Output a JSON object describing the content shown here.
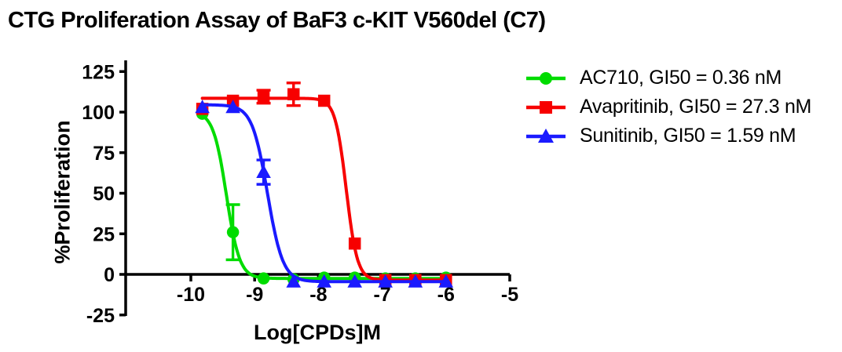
{
  "page": {
    "background": "#ffffff"
  },
  "chart_data": {
    "type": "line",
    "subtype": "dose-response-curves-with-error-bars",
    "title": "CTG Proliferation Assay of BaF3 c-KIT V560del (C7)",
    "xlabel": "Log[CPDs]M",
    "ylabel": "%Proliferation",
    "x_ticks": [
      -10,
      -9,
      -8,
      -7,
      -6,
      -5
    ],
    "y_ticks": [
      125,
      100,
      75,
      50,
      25,
      0,
      -25
    ],
    "xlim": [
      -11.05,
      -5
    ],
    "ylim": [
      -25,
      125
    ],
    "grid": false,
    "legend_position": "right",
    "axis_color": "#000000",
    "x": [
      -9.82,
      -9.34,
      -8.86,
      -8.39,
      -7.91,
      -7.43,
      -6.95,
      -6.48,
      -6.0
    ],
    "series": [
      {
        "name": "AC710, GI50 = 0.36 nM",
        "color": "#00DC00",
        "marker": "circle",
        "values": [
          99,
          26,
          -2.5,
          -3,
          -2,
          -2,
          -2.5,
          -2.5,
          -2
        ],
        "errors": [
          0,
          17,
          0,
          0,
          0,
          0,
          0,
          0,
          0
        ],
        "fit": {
          "top": 100.5,
          "bottom": -2.5,
          "logGI50": -9.443,
          "hill": 4.2
        }
      },
      {
        "name": "Avapritinib, GI50 = 27.3 nM",
        "color": "#F70000",
        "marker": "square",
        "values": [
          102,
          107,
          109.5,
          111,
          107,
          19,
          -3.5,
          -3.5,
          -3.5
        ],
        "errors": [
          0,
          0,
          4,
          7,
          0,
          0,
          0,
          0,
          0
        ],
        "fit": {
          "top": 108.5,
          "bottom": -3.5,
          "logGI50": -7.564,
          "hill": 5.0
        }
      },
      {
        "name": "Sunitinib, GI50 = 1.59 nM",
        "color": "#1A1AFF",
        "marker": "triangle",
        "values": [
          103,
          103,
          63,
          -4.5,
          -4.5,
          -4.5,
          -4.5,
          -4.5,
          -4.5
        ],
        "errors": [
          0,
          0,
          7.5,
          0,
          0,
          0,
          0,
          0,
          0
        ],
        "fit": {
          "top": 104.5,
          "bottom": -4.5,
          "logGI50": -8.799,
          "hill": 3.6
        }
      }
    ]
  }
}
